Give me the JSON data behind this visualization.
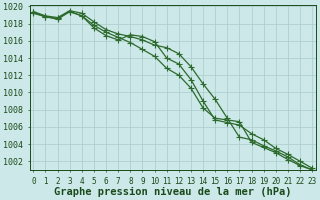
{
  "x": [
    0,
    1,
    2,
    3,
    4,
    5,
    6,
    7,
    8,
    9,
    10,
    11,
    12,
    13,
    14,
    15,
    16,
    17,
    18,
    19,
    20,
    21,
    22,
    23
  ],
  "line1": [
    1019.2,
    1018.8,
    1018.6,
    1019.4,
    1018.9,
    1017.5,
    1016.6,
    1016.1,
    1016.7,
    1016.5,
    1015.9,
    1014.0,
    1013.3,
    1011.5,
    1009.0,
    1006.8,
    1006.5,
    1006.2,
    1005.2,
    1004.5,
    1003.5,
    1002.8,
    1002.0,
    1001.2
  ],
  "line2": [
    1019.4,
    1018.9,
    1018.7,
    1019.5,
    1019.2,
    1018.2,
    1017.3,
    1016.8,
    1016.5,
    1016.1,
    1015.5,
    1015.2,
    1014.5,
    1013.0,
    1011.0,
    1009.2,
    1007.0,
    1004.8,
    1004.5,
    1003.8,
    1003.2,
    1002.5,
    1001.6,
    1001.0
  ],
  "line3": [
    1019.3,
    1018.8,
    1018.5,
    1019.4,
    1018.9,
    1017.8,
    1017.0,
    1016.4,
    1015.8,
    1015.0,
    1014.2,
    1012.8,
    1012.0,
    1010.5,
    1008.2,
    1007.0,
    1006.8,
    1006.6,
    1004.2,
    1003.6,
    1003.0,
    1002.2,
    1001.5,
    1001.0
  ],
  "line_color": "#2d6a2d",
  "bg_color": "#cce8e8",
  "grid_color": "#aacccc",
  "label_color": "#1a4a1a",
  "ylabel_min": 1002,
  "ylabel_max": 1020,
  "ylabel_step": 2,
  "xlabel_label": "Graphe pression niveau de la mer (hPa)",
  "axis_fontsize": 6.0,
  "xlabel_fontsize": 7.5
}
